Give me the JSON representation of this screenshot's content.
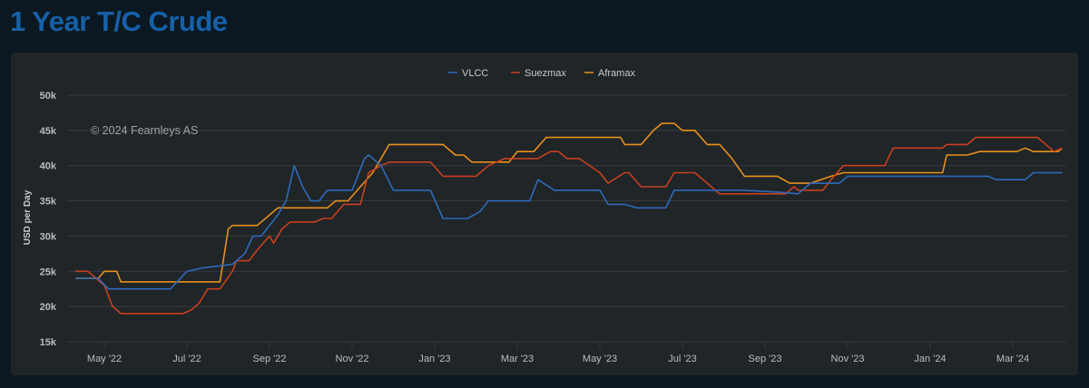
{
  "title": "1 Year T/C Crude",
  "chart_data": {
    "type": "line",
    "title": "1 Year T/C Crude",
    "ylabel": "USD per Day",
    "xlabel": "",
    "credit": "© 2024 Fearnleys AS",
    "x_unit": "months since May 2022",
    "ylim": [
      15,
      50
    ],
    "yticks": [
      {
        "v": 50,
        "label": "50k"
      },
      {
        "v": 45,
        "label": "45k"
      },
      {
        "v": 40,
        "label": "40k"
      },
      {
        "v": 35,
        "label": "35k"
      },
      {
        "v": 30,
        "label": "30k"
      },
      {
        "v": 25,
        "label": "25k"
      },
      {
        "v": 20,
        "label": "20k"
      },
      {
        "v": 15,
        "label": "15k"
      }
    ],
    "xticks": [
      {
        "m": 0,
        "label": "May '22"
      },
      {
        "m": 2,
        "label": "Jul '22"
      },
      {
        "m": 4,
        "label": "Sep '22"
      },
      {
        "m": 6,
        "label": "Nov '22"
      },
      {
        "m": 8,
        "label": "Jan '23"
      },
      {
        "m": 10,
        "label": "Mar '23"
      },
      {
        "m": 12,
        "label": "May '23"
      },
      {
        "m": 14,
        "label": "Jul '23"
      },
      {
        "m": 16,
        "label": "Sep '23"
      },
      {
        "m": 18,
        "label": "Nov '23"
      },
      {
        "m": 20,
        "label": "Jan '24"
      },
      {
        "m": 22,
        "label": "Mar '24"
      }
    ],
    "grid": true,
    "legend_position": "top-center",
    "series": [
      {
        "name": "VLCC",
        "color": "#2f6ab8",
        "points": [
          [
            -0.7,
            24
          ],
          [
            -0.15,
            24
          ],
          [
            0.1,
            22.5
          ],
          [
            1.6,
            22.5
          ],
          [
            2.0,
            25
          ],
          [
            2.4,
            25.5
          ],
          [
            3.1,
            26
          ],
          [
            3.4,
            27.5
          ],
          [
            3.6,
            30
          ],
          [
            3.8,
            30
          ],
          [
            4.2,
            33
          ],
          [
            4.4,
            35
          ],
          [
            4.6,
            40
          ],
          [
            4.8,
            37
          ],
          [
            5.0,
            35
          ],
          [
            5.2,
            35
          ],
          [
            5.4,
            36.5
          ],
          [
            6.0,
            36.5
          ],
          [
            6.3,
            41
          ],
          [
            6.4,
            41.5
          ],
          [
            6.7,
            40
          ],
          [
            7.0,
            36.5
          ],
          [
            7.9,
            36.5
          ],
          [
            8.2,
            32.5
          ],
          [
            8.8,
            32.5
          ],
          [
            9.1,
            33.5
          ],
          [
            9.3,
            35
          ],
          [
            10.3,
            35
          ],
          [
            10.5,
            38
          ],
          [
            10.9,
            36.5
          ],
          [
            12.0,
            36.5
          ],
          [
            12.2,
            34.5
          ],
          [
            12.6,
            34.5
          ],
          [
            12.9,
            34
          ],
          [
            13.6,
            34
          ],
          [
            13.8,
            36.5
          ],
          [
            15.5,
            36.5
          ],
          [
            16.4,
            36.2
          ],
          [
            16.8,
            36
          ],
          [
            17.1,
            37.5
          ],
          [
            17.8,
            37.5
          ],
          [
            18.0,
            38.5
          ],
          [
            21.4,
            38.5
          ],
          [
            21.6,
            38
          ],
          [
            22.3,
            38
          ],
          [
            22.5,
            39
          ],
          [
            23.2,
            39
          ]
        ]
      },
      {
        "name": "Suezmax",
        "color": "#c8401e",
        "points": [
          [
            -0.7,
            25
          ],
          [
            -0.4,
            25
          ],
          [
            -0.2,
            24
          ],
          [
            0,
            23
          ],
          [
            0.2,
            20
          ],
          [
            0.4,
            19
          ],
          [
            1.9,
            19
          ],
          [
            2.1,
            19.5
          ],
          [
            2.3,
            20.5
          ],
          [
            2.5,
            22.5
          ],
          [
            2.8,
            22.5
          ],
          [
            3.1,
            25
          ],
          [
            3.2,
            26.5
          ],
          [
            3.5,
            26.5
          ],
          [
            3.7,
            28
          ],
          [
            4.0,
            30
          ],
          [
            4.1,
            29
          ],
          [
            4.3,
            31
          ],
          [
            4.5,
            32
          ],
          [
            5.1,
            32
          ],
          [
            5.3,
            32.5
          ],
          [
            5.5,
            32.5
          ],
          [
            5.8,
            34.5
          ],
          [
            6.2,
            34.5
          ],
          [
            6.4,
            39
          ],
          [
            6.7,
            40
          ],
          [
            6.9,
            40.5
          ],
          [
            7.9,
            40.5
          ],
          [
            8.2,
            38.5
          ],
          [
            9.0,
            38.5
          ],
          [
            9.3,
            40
          ],
          [
            9.7,
            41
          ],
          [
            10.5,
            41
          ],
          [
            10.8,
            42
          ],
          [
            11.0,
            42
          ],
          [
            11.2,
            41
          ],
          [
            11.5,
            41
          ],
          [
            12.0,
            39
          ],
          [
            12.2,
            37.5
          ],
          [
            12.6,
            39
          ],
          [
            12.7,
            39
          ],
          [
            13.0,
            37
          ],
          [
            13.6,
            37
          ],
          [
            13.8,
            39
          ],
          [
            14.3,
            39
          ],
          [
            14.5,
            38
          ],
          [
            14.9,
            36
          ],
          [
            16.5,
            36
          ],
          [
            16.7,
            37
          ],
          [
            16.8,
            36.5
          ],
          [
            17.4,
            36.5
          ],
          [
            17.6,
            38
          ],
          [
            17.9,
            40
          ],
          [
            18.9,
            40
          ],
          [
            19.1,
            42.5
          ],
          [
            20.3,
            42.5
          ],
          [
            20.4,
            43
          ],
          [
            20.9,
            43
          ],
          [
            21.1,
            44
          ],
          [
            22.6,
            44
          ],
          [
            23.0,
            42
          ],
          [
            23.2,
            42.5
          ]
        ]
      },
      {
        "name": "Aframax",
        "color": "#e8901c",
        "points": [
          [
            -0.7,
            24
          ],
          [
            -0.15,
            24
          ],
          [
            0,
            25
          ],
          [
            0.3,
            25
          ],
          [
            0.4,
            23.5
          ],
          [
            2.8,
            23.5
          ],
          [
            3.0,
            31
          ],
          [
            3.1,
            31.5
          ],
          [
            3.7,
            31.5
          ],
          [
            4.0,
            33
          ],
          [
            4.2,
            34
          ],
          [
            5.4,
            34
          ],
          [
            5.6,
            35
          ],
          [
            5.9,
            35
          ],
          [
            6.2,
            37
          ],
          [
            6.5,
            39
          ],
          [
            6.9,
            43
          ],
          [
            8.2,
            43
          ],
          [
            8.5,
            41.5
          ],
          [
            8.7,
            41.5
          ],
          [
            8.9,
            40.5
          ],
          [
            9.8,
            40.5
          ],
          [
            10.0,
            42
          ],
          [
            10.4,
            42
          ],
          [
            10.7,
            44
          ],
          [
            12.5,
            44
          ],
          [
            12.6,
            43
          ],
          [
            13.0,
            43
          ],
          [
            13.3,
            45
          ],
          [
            13.5,
            46
          ],
          [
            13.8,
            46
          ],
          [
            14.0,
            45
          ],
          [
            14.3,
            45
          ],
          [
            14.6,
            43
          ],
          [
            14.9,
            43
          ],
          [
            15.2,
            41
          ],
          [
            15.5,
            38.5
          ],
          [
            16.3,
            38.5
          ],
          [
            16.6,
            37.5
          ],
          [
            17.1,
            37.5
          ],
          [
            17.6,
            38.5
          ],
          [
            17.9,
            39
          ],
          [
            20.3,
            39
          ],
          [
            20.4,
            41.5
          ],
          [
            20.9,
            41.5
          ],
          [
            21.2,
            42
          ],
          [
            22.1,
            42
          ],
          [
            22.3,
            42.5
          ],
          [
            22.5,
            42
          ],
          [
            23.1,
            42
          ],
          [
            23.2,
            42.5
          ]
        ]
      }
    ]
  }
}
